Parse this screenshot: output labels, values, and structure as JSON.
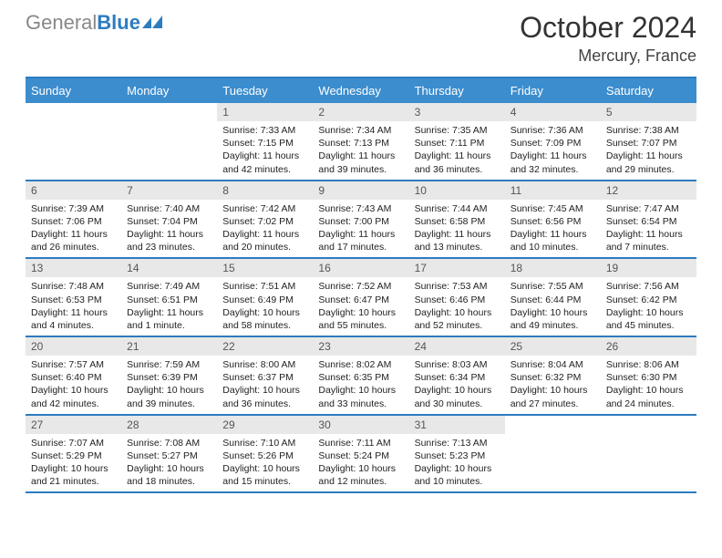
{
  "logo": {
    "part1": "General",
    "part2": "Blue"
  },
  "title": "October 2024",
  "location": "Mercury, France",
  "dayheads": [
    "Sunday",
    "Monday",
    "Tuesday",
    "Wednesday",
    "Thursday",
    "Friday",
    "Saturday"
  ],
  "colors": {
    "header_bg": "#3c8dce",
    "border": "#2d7cc0",
    "daynum_bg": "#e8e8e8"
  },
  "weeks": [
    [
      {
        "empty": true
      },
      {
        "empty": true
      },
      {
        "n": "1",
        "sr": "7:33 AM",
        "ss": "7:15 PM",
        "dl": "11 hours and 42 minutes."
      },
      {
        "n": "2",
        "sr": "7:34 AM",
        "ss": "7:13 PM",
        "dl": "11 hours and 39 minutes."
      },
      {
        "n": "3",
        "sr": "7:35 AM",
        "ss": "7:11 PM",
        "dl": "11 hours and 36 minutes."
      },
      {
        "n": "4",
        "sr": "7:36 AM",
        "ss": "7:09 PM",
        "dl": "11 hours and 32 minutes."
      },
      {
        "n": "5",
        "sr": "7:38 AM",
        "ss": "7:07 PM",
        "dl": "11 hours and 29 minutes."
      }
    ],
    [
      {
        "n": "6",
        "sr": "7:39 AM",
        "ss": "7:06 PM",
        "dl": "11 hours and 26 minutes."
      },
      {
        "n": "7",
        "sr": "7:40 AM",
        "ss": "7:04 PM",
        "dl": "11 hours and 23 minutes."
      },
      {
        "n": "8",
        "sr": "7:42 AM",
        "ss": "7:02 PM",
        "dl": "11 hours and 20 minutes."
      },
      {
        "n": "9",
        "sr": "7:43 AM",
        "ss": "7:00 PM",
        "dl": "11 hours and 17 minutes."
      },
      {
        "n": "10",
        "sr": "7:44 AM",
        "ss": "6:58 PM",
        "dl": "11 hours and 13 minutes."
      },
      {
        "n": "11",
        "sr": "7:45 AM",
        "ss": "6:56 PM",
        "dl": "11 hours and 10 minutes."
      },
      {
        "n": "12",
        "sr": "7:47 AM",
        "ss": "6:54 PM",
        "dl": "11 hours and 7 minutes."
      }
    ],
    [
      {
        "n": "13",
        "sr": "7:48 AM",
        "ss": "6:53 PM",
        "dl": "11 hours and 4 minutes."
      },
      {
        "n": "14",
        "sr": "7:49 AM",
        "ss": "6:51 PM",
        "dl": "11 hours and 1 minute."
      },
      {
        "n": "15",
        "sr": "7:51 AM",
        "ss": "6:49 PM",
        "dl": "10 hours and 58 minutes."
      },
      {
        "n": "16",
        "sr": "7:52 AM",
        "ss": "6:47 PM",
        "dl": "10 hours and 55 minutes."
      },
      {
        "n": "17",
        "sr": "7:53 AM",
        "ss": "6:46 PM",
        "dl": "10 hours and 52 minutes."
      },
      {
        "n": "18",
        "sr": "7:55 AM",
        "ss": "6:44 PM",
        "dl": "10 hours and 49 minutes."
      },
      {
        "n": "19",
        "sr": "7:56 AM",
        "ss": "6:42 PM",
        "dl": "10 hours and 45 minutes."
      }
    ],
    [
      {
        "n": "20",
        "sr": "7:57 AM",
        "ss": "6:40 PM",
        "dl": "10 hours and 42 minutes."
      },
      {
        "n": "21",
        "sr": "7:59 AM",
        "ss": "6:39 PM",
        "dl": "10 hours and 39 minutes."
      },
      {
        "n": "22",
        "sr": "8:00 AM",
        "ss": "6:37 PM",
        "dl": "10 hours and 36 minutes."
      },
      {
        "n": "23",
        "sr": "8:02 AM",
        "ss": "6:35 PM",
        "dl": "10 hours and 33 minutes."
      },
      {
        "n": "24",
        "sr": "8:03 AM",
        "ss": "6:34 PM",
        "dl": "10 hours and 30 minutes."
      },
      {
        "n": "25",
        "sr": "8:04 AM",
        "ss": "6:32 PM",
        "dl": "10 hours and 27 minutes."
      },
      {
        "n": "26",
        "sr": "8:06 AM",
        "ss": "6:30 PM",
        "dl": "10 hours and 24 minutes."
      }
    ],
    [
      {
        "n": "27",
        "sr": "7:07 AM",
        "ss": "5:29 PM",
        "dl": "10 hours and 21 minutes."
      },
      {
        "n": "28",
        "sr": "7:08 AM",
        "ss": "5:27 PM",
        "dl": "10 hours and 18 minutes."
      },
      {
        "n": "29",
        "sr": "7:10 AM",
        "ss": "5:26 PM",
        "dl": "10 hours and 15 minutes."
      },
      {
        "n": "30",
        "sr": "7:11 AM",
        "ss": "5:24 PM",
        "dl": "10 hours and 12 minutes."
      },
      {
        "n": "31",
        "sr": "7:13 AM",
        "ss": "5:23 PM",
        "dl": "10 hours and 10 minutes."
      },
      {
        "empty": true
      },
      {
        "empty": true
      }
    ]
  ],
  "labels": {
    "sunrise": "Sunrise:",
    "sunset": "Sunset:",
    "daylight": "Daylight:"
  }
}
